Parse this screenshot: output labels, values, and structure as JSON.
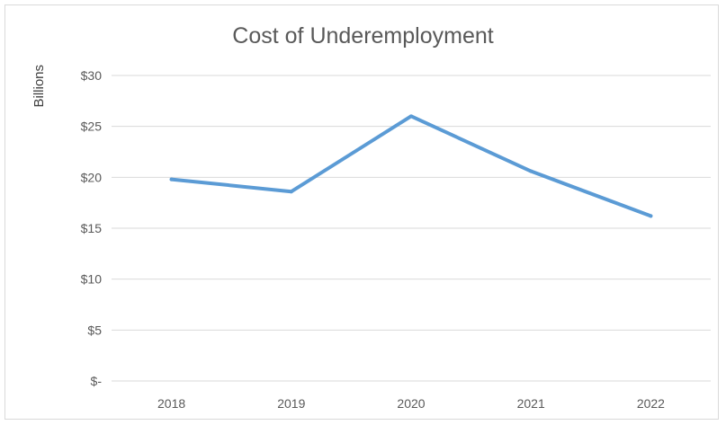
{
  "chart_data": {
    "type": "line",
    "title": "Cost of Underemployment",
    "xlabel": "",
    "ylabel": "Billions",
    "categories": [
      "2018",
      "2019",
      "2020",
      "2021",
      "2022"
    ],
    "series": [
      {
        "values": [
          19.8,
          18.6,
          26.0,
          20.6,
          16.2
        ]
      }
    ],
    "ylim": [
      0,
      30
    ],
    "yticks": [
      0,
      5,
      10,
      15,
      20,
      25,
      30
    ],
    "ytick_labels": [
      "$-",
      "$5",
      "$10",
      "$15",
      "$20",
      "$25",
      "$30"
    ],
    "grid": true,
    "legend": "none",
    "line_color": "#5b9bd5",
    "grid_color": "#d9d9d9"
  }
}
